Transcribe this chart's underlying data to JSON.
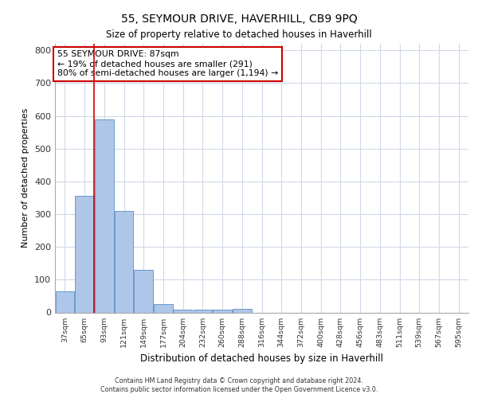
{
  "title": "55, SEYMOUR DRIVE, HAVERHILL, CB9 9PQ",
  "subtitle": "Size of property relative to detached houses in Haverhill",
  "xlabel": "Distribution of detached houses by size in Haverhill",
  "ylabel": "Number of detached properties",
  "categories": [
    "37sqm",
    "65sqm",
    "93sqm",
    "121sqm",
    "149sqm",
    "177sqm",
    "204sqm",
    "232sqm",
    "260sqm",
    "288sqm",
    "316sqm",
    "344sqm",
    "372sqm",
    "400sqm",
    "428sqm",
    "456sqm",
    "483sqm",
    "511sqm",
    "539sqm",
    "567sqm",
    "595sqm"
  ],
  "values": [
    65,
    355,
    590,
    310,
    130,
    25,
    8,
    8,
    8,
    10,
    0,
    0,
    0,
    0,
    0,
    0,
    0,
    0,
    0,
    0,
    0
  ],
  "bar_color": "#aec6e8",
  "bar_edge_color": "#5a8fc2",
  "grid_color": "#d0d8e8",
  "vline_x": 1.5,
  "vline_color": "#cc0000",
  "annotation_box_text": "55 SEYMOUR DRIVE: 87sqm\n← 19% of detached houses are smaller (291)\n80% of semi-detached houses are larger (1,194) →",
  "annotation_box_color": "#cc0000",
  "ylim": [
    0,
    820
  ],
  "yticks": [
    0,
    100,
    200,
    300,
    400,
    500,
    600,
    700,
    800
  ],
  "footer_line1": "Contains HM Land Registry data © Crown copyright and database right 2024.",
  "footer_line2": "Contains public sector information licensed under the Open Government Licence v3.0."
}
